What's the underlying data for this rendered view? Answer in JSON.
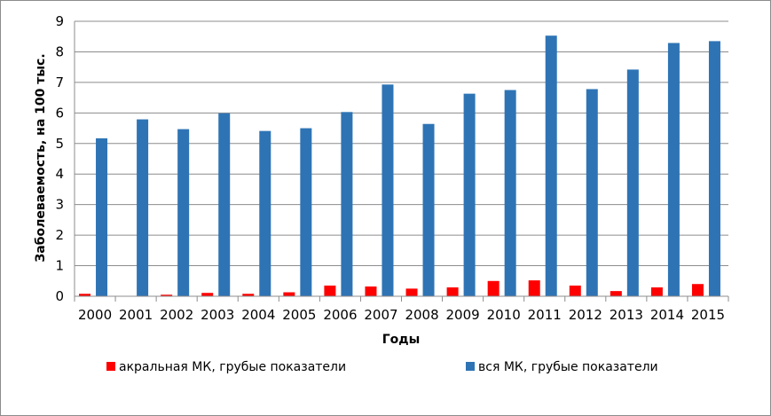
{
  "chart_data": {
    "type": "bar",
    "title": "",
    "xlabel": "Годы",
    "ylabel": "Заболеваемость, на 100 тыс.",
    "ylim": [
      0,
      9
    ],
    "yticks": [
      0,
      1,
      2,
      3,
      4,
      5,
      6,
      7,
      8,
      9
    ],
    "grid": true,
    "legend_position": "bottom",
    "categories": [
      "2000",
      "2001",
      "2002",
      "2003",
      "2004",
      "2005",
      "2006",
      "2007",
      "2008",
      "2009",
      "2010",
      "2011",
      "2012",
      "2013",
      "2014",
      "2015"
    ],
    "series": [
      {
        "name": "акральная МК, грубые показатели",
        "color": "#ff0000",
        "values": [
          0.08,
          0.0,
          0.05,
          0.11,
          0.08,
          0.13,
          0.35,
          0.32,
          0.25,
          0.29,
          0.5,
          0.52,
          0.35,
          0.17,
          0.29,
          0.4
        ]
      },
      {
        "name": "вся МК, грубые показатели",
        "color": "#2e74b5",
        "values": [
          5.17,
          5.79,
          5.47,
          5.99,
          5.41,
          5.5,
          6.03,
          6.93,
          5.64,
          6.63,
          6.75,
          8.53,
          6.78,
          7.42,
          8.29,
          8.35
        ]
      }
    ]
  }
}
